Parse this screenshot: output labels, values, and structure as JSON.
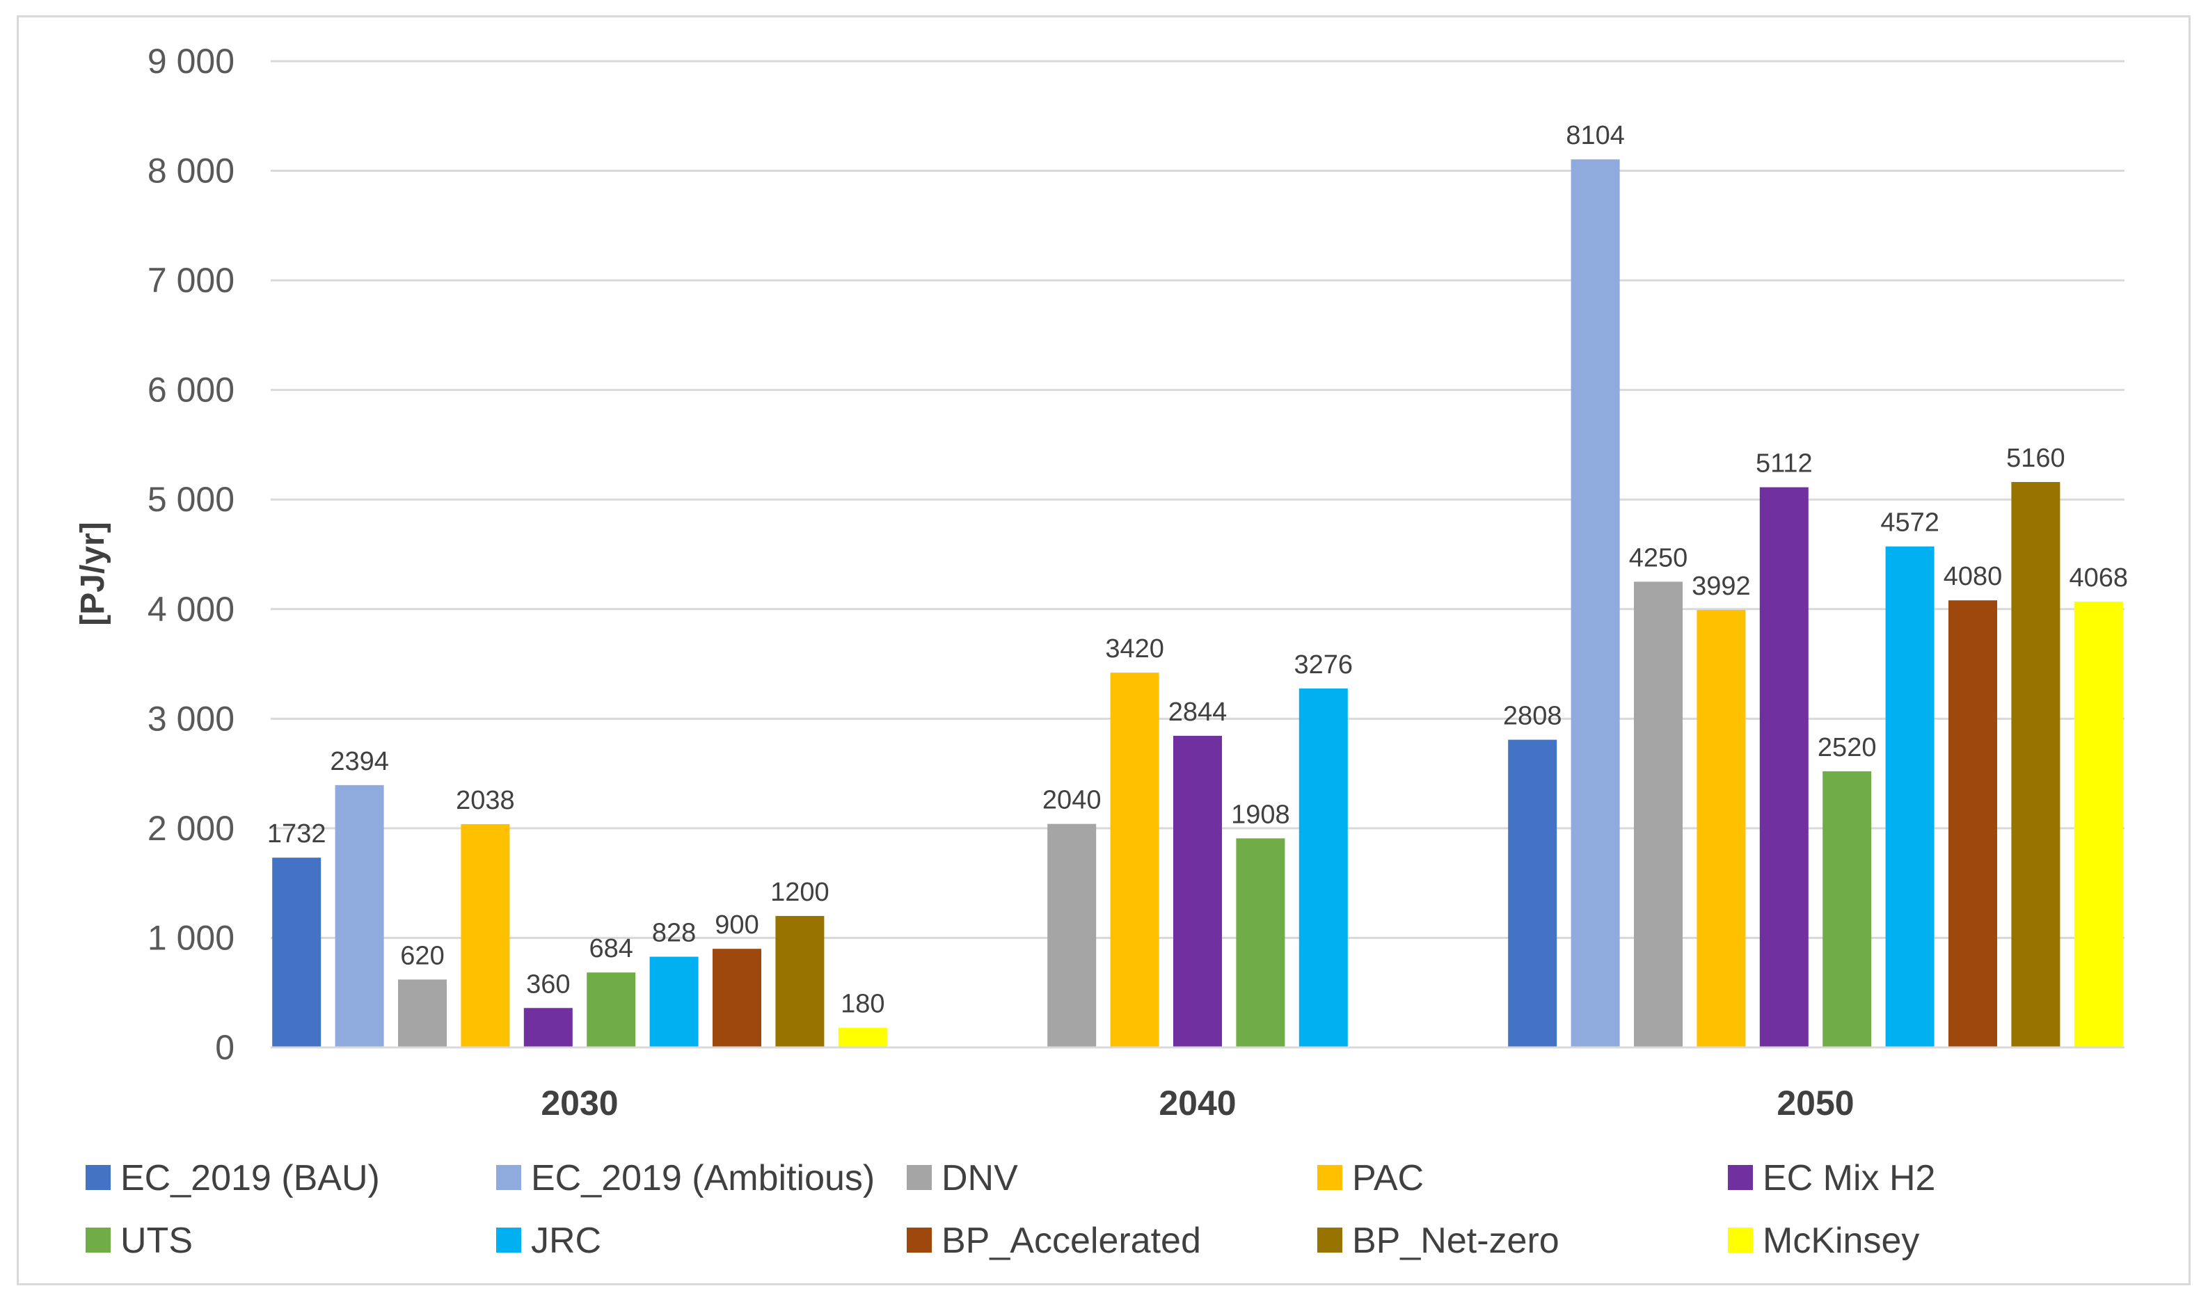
{
  "chart_data": {
    "type": "bar",
    "title": "",
    "xlabel": "",
    "ylabel": "[PJ/yr]",
    "ylim": [
      0,
      9000
    ],
    "y_ticks": [
      0,
      1000,
      2000,
      3000,
      4000,
      5000,
      6000,
      7000,
      8000,
      9000
    ],
    "y_tick_labels": [
      "0",
      "1 000",
      "2 000",
      "3 000",
      "4 000",
      "5 000",
      "6 000",
      "7 000",
      "8 000",
      "9 000"
    ],
    "grid": true,
    "legend_position": "bottom",
    "categories": [
      "2030",
      "2040",
      "2050"
    ],
    "series": [
      {
        "name": "EC_2019 (BAU)",
        "color": "#4472C4",
        "values": [
          1732,
          null,
          2808
        ]
      },
      {
        "name": "EC_2019 (Ambitious)",
        "color": "#8FAADC",
        "values": [
          2394,
          null,
          8104
        ]
      },
      {
        "name": "DNV",
        "color": "#A5A5A5",
        "values": [
          620,
          2040,
          4250
        ]
      },
      {
        "name": "PAC",
        "color": "#FFC000",
        "values": [
          2038,
          3420,
          3992
        ]
      },
      {
        "name": "EC Mix H2",
        "color": "#7030A0",
        "values": [
          360,
          2844,
          5112
        ]
      },
      {
        "name": "UTS",
        "color": "#70AD47",
        "values": [
          684,
          1908,
          2520
        ]
      },
      {
        "name": "JRC",
        "color": "#00B0F0",
        "values": [
          828,
          3276,
          4572
        ]
      },
      {
        "name": "BP_Accelerated",
        "color": "#9E480E",
        "values": [
          900,
          null,
          4080
        ]
      },
      {
        "name": "BP_Net-zero",
        "color": "#997300",
        "values": [
          1200,
          null,
          5160
        ]
      },
      {
        "name": "McKinsey",
        "color": "#FFFF00",
        "values": [
          180,
          null,
          4068
        ]
      }
    ]
  }
}
